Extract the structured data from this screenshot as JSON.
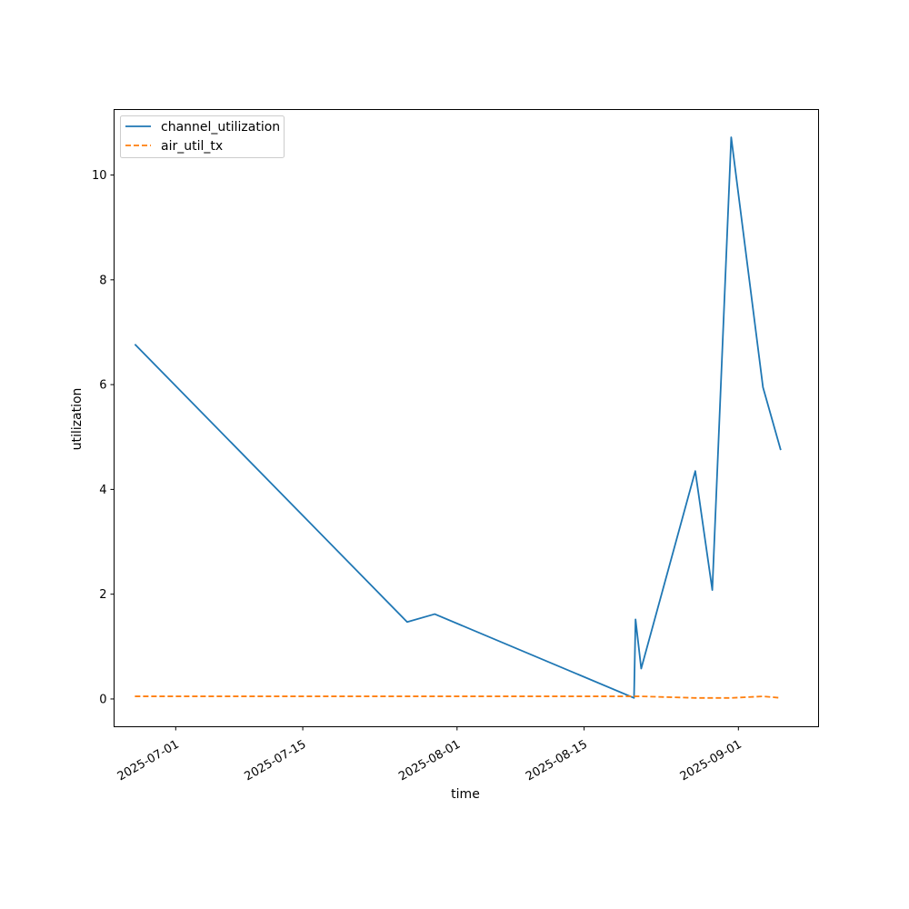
{
  "chart_data": {
    "type": "line",
    "xlabel": "time",
    "ylabel": "utilization",
    "xlim": [
      "2025-06-24T05:00",
      "2025-09-09T20:00"
    ],
    "ylim": [
      -0.53,
      11.25
    ],
    "xticks": [
      "2025-07-01",
      "2025-07-15",
      "2025-08-01",
      "2025-08-15",
      "2025-09-01"
    ],
    "yticks": [
      0,
      2,
      4,
      6,
      8,
      10
    ],
    "grid": false,
    "legend_position": "upper-left",
    "series": [
      {
        "name": "channel_utilization",
        "color": "#1f77b4",
        "style": "solid",
        "points": [
          {
            "x": "2025-06-26T12:00",
            "y": 6.77
          },
          {
            "x": "2025-07-26T12:00",
            "y": 1.47
          },
          {
            "x": "2025-07-29T13:00",
            "y": 1.62
          },
          {
            "x": "2025-08-20T12:00",
            "y": 0.02
          },
          {
            "x": "2025-08-20T16:00",
            "y": 1.52
          },
          {
            "x": "2025-08-21T07:00",
            "y": 0.58
          },
          {
            "x": "2025-08-27T06:00",
            "y": 4.35
          },
          {
            "x": "2025-08-29T03:00",
            "y": 2.08
          },
          {
            "x": "2025-08-31T05:00",
            "y": 10.72
          },
          {
            "x": "2025-09-03T17:00",
            "y": 5.95
          },
          {
            "x": "2025-09-05T16:00",
            "y": 4.75
          }
        ]
      },
      {
        "name": "air_util_tx",
        "color": "#ff7f0e",
        "style": "dashed",
        "points": [
          {
            "x": "2025-06-26T12:00",
            "y": 0.05
          },
          {
            "x": "2025-07-26T12:00",
            "y": 0.05
          },
          {
            "x": "2025-07-29T13:00",
            "y": 0.05
          },
          {
            "x": "2025-08-20T12:00",
            "y": 0.05
          },
          {
            "x": "2025-08-20T16:00",
            "y": 0.05
          },
          {
            "x": "2025-08-21T07:00",
            "y": 0.05
          },
          {
            "x": "2025-08-27T06:00",
            "y": 0.02
          },
          {
            "x": "2025-08-29T03:00",
            "y": 0.02
          },
          {
            "x": "2025-08-31T05:00",
            "y": 0.02
          },
          {
            "x": "2025-09-03T17:00",
            "y": 0.05
          },
          {
            "x": "2025-09-05T16:00",
            "y": 0.02
          }
        ]
      }
    ]
  }
}
